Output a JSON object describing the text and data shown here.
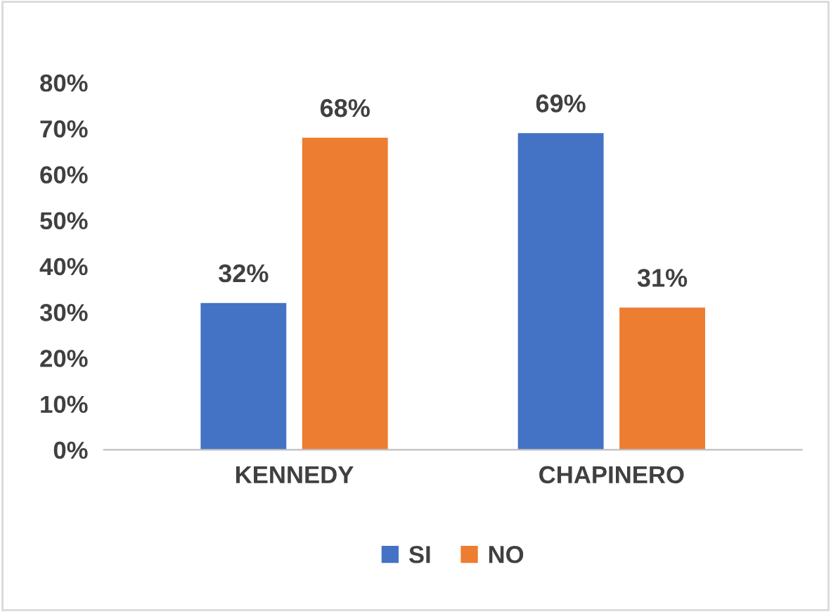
{
  "chart_data": {
    "type": "bar",
    "categories": [
      "KENNEDY",
      "CHAPINERO"
    ],
    "series": [
      {
        "name": "SI",
        "color": "#4472c4",
        "values": [
          32,
          69
        ],
        "value_labels": [
          "32%",
          "69%"
        ]
      },
      {
        "name": "NO",
        "color": "#ed7d31",
        "values": [
          68,
          31
        ],
        "value_labels": [
          "68%",
          "31%"
        ]
      }
    ],
    "ylim": [
      0,
      80
    ],
    "yticks": [
      {
        "value": 0,
        "label": "0%"
      },
      {
        "value": 10,
        "label": "10%"
      },
      {
        "value": 20,
        "label": "20%"
      },
      {
        "value": 30,
        "label": "30%"
      },
      {
        "value": 40,
        "label": "40%"
      },
      {
        "value": 50,
        "label": "50%"
      },
      {
        "value": 60,
        "label": "60%"
      },
      {
        "value": 70,
        "label": "70%"
      },
      {
        "value": 80,
        "label": "80%"
      }
    ],
    "grid": false,
    "legend": "bottom"
  }
}
